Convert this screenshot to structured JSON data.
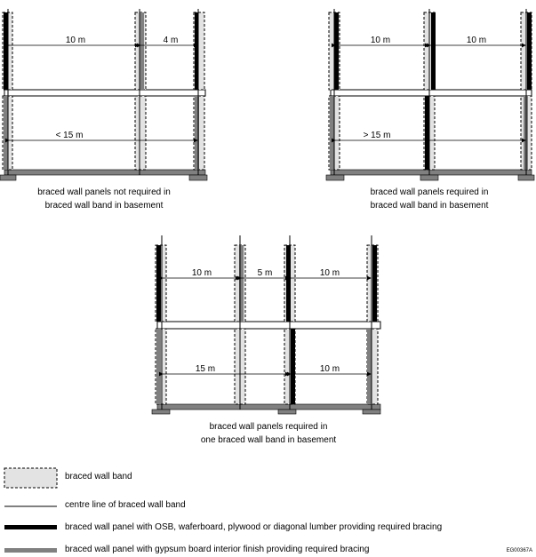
{
  "diagram_a": {
    "dimensions": [
      "10 m",
      "4 m",
      "< 15 m"
    ],
    "caption_lines": [
      "braced wall panels not required in",
      "braced wall band in basement"
    ]
  },
  "diagram_b": {
    "dimensions": [
      "10 m",
      "10 m",
      "> 15 m"
    ],
    "caption_lines": [
      "braced wall panels required in",
      "braced wall band in basement"
    ]
  },
  "diagram_c": {
    "dimensions": [
      "10 m",
      "5 m",
      "10 m",
      "15 m",
      "10 m"
    ],
    "caption_lines": [
      "braced wall panels required in",
      "one braced wall band in basement"
    ]
  },
  "legend": {
    "braced_wall_band": "braced wall band",
    "centre_line": "centre line of braced wall band",
    "panel_osb": "braced wall panel with OSB, waferboard, plywood or diagonal lumber providing required bracing",
    "panel_gypsum": "braced wall panel with gypsum board interior finish providing required bracing"
  },
  "figure_code": "EG00367A",
  "colors": {
    "band_fill": "#e3e3e3",
    "osb_panel": "#000000",
    "gypsum_panel": "#808080"
  }
}
